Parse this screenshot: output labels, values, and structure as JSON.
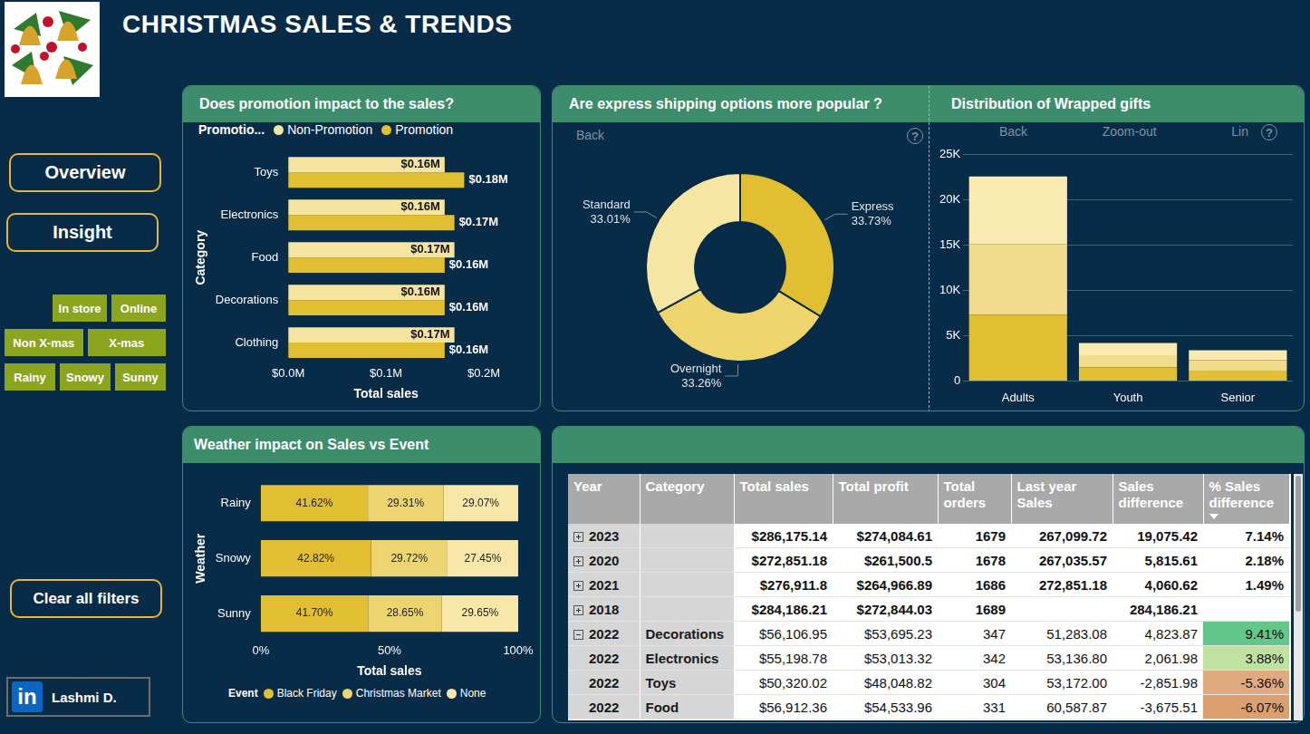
{
  "header": {
    "title": "CHRISTMAS SALES & TRENDS"
  },
  "navigation": {
    "pages": [
      "Overview",
      "Insight"
    ],
    "slicers": [
      [
        "In store",
        "Online"
      ],
      [
        "Non X-mas",
        "X-mas"
      ],
      [
        "Rainy",
        "Snowy",
        "Sunny"
      ]
    ],
    "clear_button": "Clear all filters",
    "author": {
      "icon": "in",
      "name": "Lashmi D."
    }
  },
  "chart_data": [
    {
      "type": "bar",
      "title": "Does promotion impact to the sales?",
      "orientation": "horizontal",
      "legend": "top",
      "legend_title": "Promotio...",
      "x_label": "Total sales",
      "y_label": "Category",
      "categories": [
        "Toys",
        "Electronics",
        "Food",
        "Decorations",
        "Clothing"
      ],
      "series": [
        {
          "name": "Non-Promotion",
          "color": "#f5e4a0",
          "values": [
            0.16,
            0.16,
            0.17,
            0.16,
            0.17
          ],
          "value_labels": [
            "$0.16M",
            "$0.16M",
            "$0.17M",
            "$0.16M",
            "$0.17M"
          ]
        },
        {
          "name": "Promotion",
          "color": "#e2bf32",
          "values": [
            0.18,
            0.17,
            0.16,
            0.16,
            0.16
          ],
          "value_labels": [
            "$0.18M",
            "$0.17M",
            "$0.16M",
            "$0.16M",
            "$0.16M"
          ]
        }
      ],
      "xlim": [
        0,
        0.2
      ],
      "xticks": [
        {
          "value": 0,
          "label": "$0.0M"
        },
        {
          "value": 0.1,
          "label": "$0.1M"
        },
        {
          "value": 0.2,
          "label": "$0.2M"
        }
      ],
      "grid": false,
      "data_labels": true
    },
    {
      "type": "doughnut",
      "title": "Are express shipping options more popular ?",
      "toolbar": [
        "Back",
        "?"
      ],
      "categories": [
        "Express",
        "Overnight",
        "Standard"
      ],
      "values": [
        33.73,
        33.26,
        33.01
      ],
      "value_labels": [
        "33.73%",
        "33.26%",
        "33.01%"
      ],
      "colors": [
        "#e2bf32",
        "#edd46c",
        "#f6e6a4"
      ],
      "data_labels": true
    },
    {
      "type": "bar",
      "title": "Distribution of Wrapped gifts",
      "toolbar": [
        "Back",
        "Zoom-out",
        "Lin",
        "?"
      ],
      "stacked": true,
      "categories": [
        "Adults",
        "Youth",
        "Senior"
      ],
      "series": [
        {
          "color": "#e2bf32",
          "values": [
            7300,
            1500,
            1150
          ]
        },
        {
          "color": "#f1dc8e",
          "values": [
            7800,
            1350,
            1150
          ]
        },
        {
          "color": "#f8eab0",
          "values": [
            7500,
            1350,
            1100
          ]
        }
      ],
      "ylim": [
        0,
        25000
      ],
      "yticks": [
        0,
        {
          "value": 5000,
          "label": "5K"
        },
        {
          "value": 10000,
          "label": "10K"
        },
        {
          "value": 15000,
          "label": "15K"
        },
        {
          "value": 20000,
          "label": "20K"
        },
        {
          "value": 25000,
          "label": "25K"
        }
      ],
      "grid": true
    },
    {
      "type": "bar",
      "title": "Weather impact on Sales vs Event",
      "orientation": "horizontal",
      "stacked": true,
      "legend": "bottom",
      "legend_title": "Event",
      "x_label": "Total sales",
      "y_label": "Weather",
      "categories": [
        "Rainy",
        "Snowy",
        "Sunny"
      ],
      "series": [
        {
          "name": "Black Friday",
          "color": "#e2bf32",
          "values": [
            41.62,
            42.82,
            41.7
          ],
          "value_labels": [
            "41.62%",
            "42.82%",
            "41.70%"
          ]
        },
        {
          "name": "Christmas Market",
          "color": "#ecd470",
          "values": [
            29.31,
            29.72,
            28.65
          ],
          "value_labels": [
            "29.31%",
            "29.72%",
            "28.65%"
          ]
        },
        {
          "name": "None",
          "color": "#f7e8aa",
          "values": [
            29.07,
            27.45,
            29.65
          ],
          "value_labels": [
            "29.07%",
            "27.45%",
            "29.65%"
          ]
        }
      ],
      "xlim": [
        0,
        100
      ],
      "xticks": [
        {
          "value": 0,
          "label": "0%"
        },
        {
          "value": 50,
          "label": "50%"
        },
        {
          "value": 100,
          "label": "100%"
        }
      ],
      "grid": false,
      "data_labels": true
    }
  ],
  "table": {
    "columns": [
      "Year",
      "Category",
      "Total sales",
      "Total profit",
      "Total orders",
      "Last year Sales",
      "Sales difference",
      "% Sales difference"
    ],
    "rows": [
      [
        "2023",
        null,
        "$286,175.14",
        "$274,084.61",
        "1679",
        "267,099.72",
        "19,075.42",
        "7.14%"
      ],
      [
        "2020",
        null,
        "$272,851.18",
        "$261,500.5",
        "1678",
        "267,035.57",
        "5,815.61",
        "2.18%"
      ],
      [
        "2021",
        null,
        "$276,911.8",
        "$264,966.89",
        "1686",
        "272,851.18",
        "4,060.62",
        "1.49%"
      ],
      [
        "2018",
        null,
        "$284,186.21",
        "$272,844.03",
        "1689",
        null,
        "284,186.21",
        null
      ],
      [
        "2022",
        "Decorations",
        "$56,106.95",
        "$53,695.23",
        "347",
        "51,283.08",
        "4,823.87",
        "9.41%"
      ],
      [
        "2022",
        "Electronics",
        "$55,198.78",
        "$53,013.32",
        "342",
        "53,136.80",
        "2,061.98",
        "3.88%"
      ],
      [
        "2022",
        "Toys",
        "$50,320.02",
        "$48,048.82",
        "304",
        "53,172.00",
        "-2,851.98",
        "-5.36%"
      ],
      [
        "2022",
        "Food",
        "$56,912.36",
        "$54,533.96",
        "331",
        "60,587.87",
        "-3,675.51",
        "-6.07%"
      ]
    ],
    "pct_colors": [
      null,
      null,
      null,
      null,
      "#63c78a",
      "#c0e2a0",
      "#e0aa80",
      "#dba070"
    ]
  }
}
